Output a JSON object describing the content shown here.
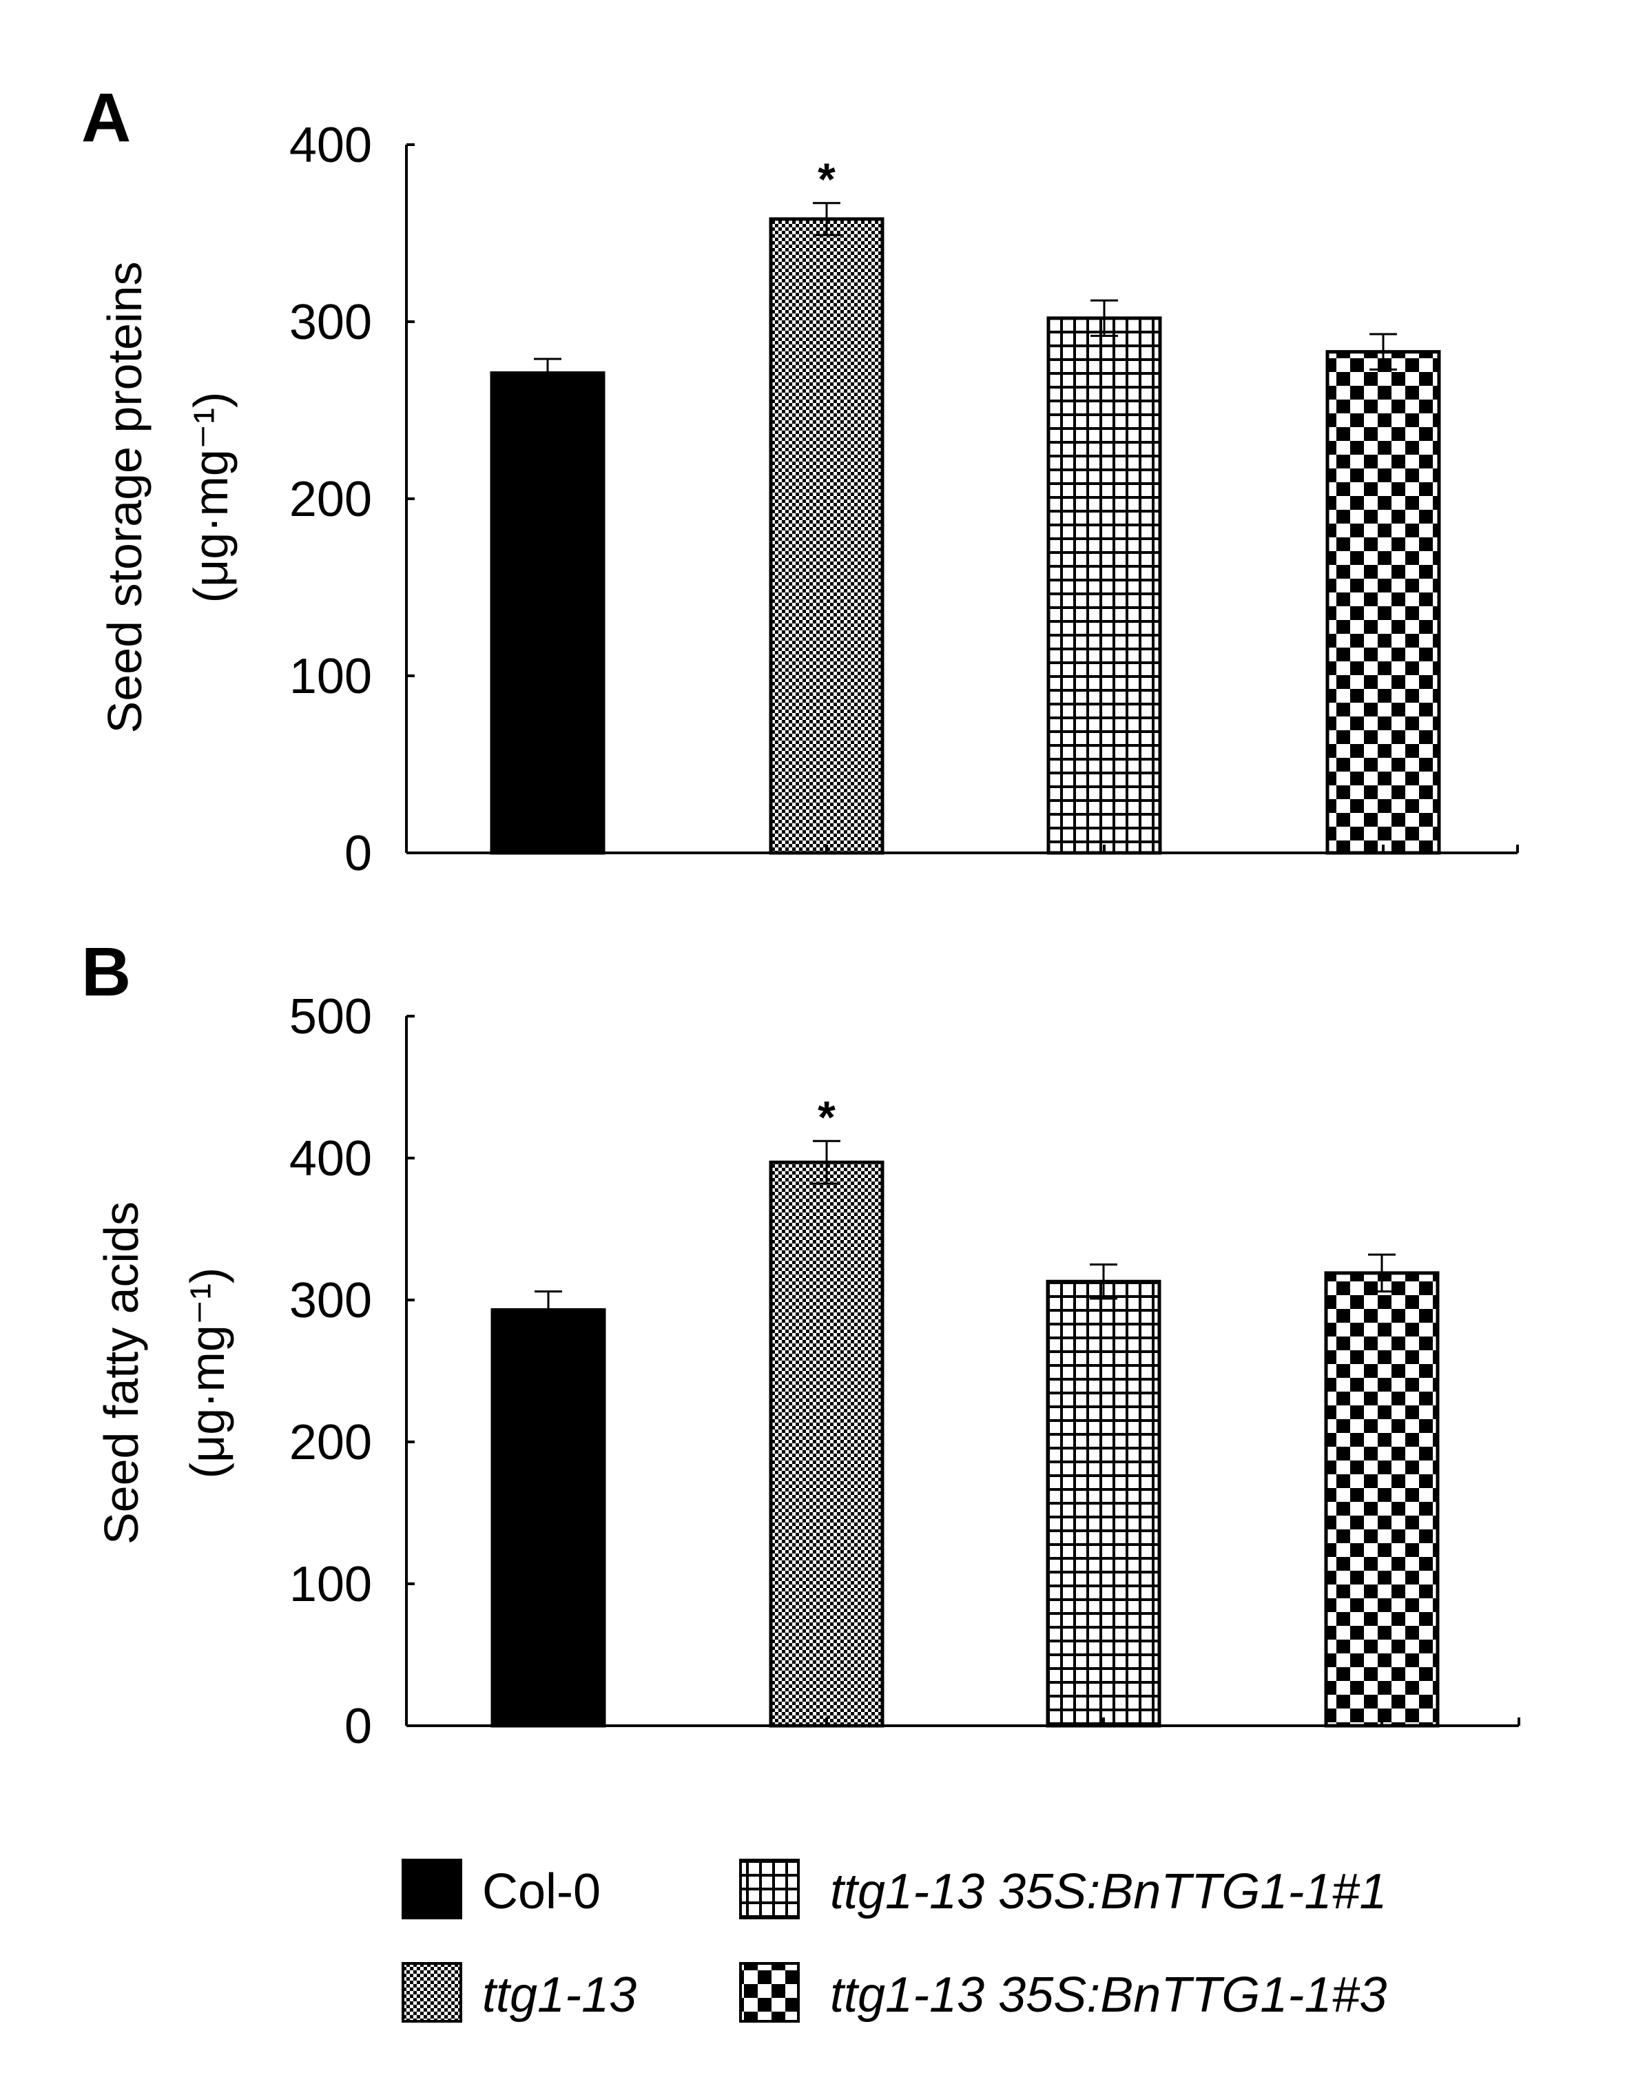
{
  "chart_data": [
    {
      "type": "bar",
      "panel": "A",
      "categories": [
        "Col-0",
        "ttg1-13",
        "ttg1-13 35S:BnTTG1-1#1",
        "ttg1-13 35S:BnTTG1-1#3"
      ],
      "values": [
        271,
        358,
        302,
        283
      ],
      "errors": [
        8,
        9,
        10,
        10
      ],
      "significance": [
        "",
        "*",
        "",
        ""
      ],
      "ylabel": "Seed storage proteins",
      "yunit": "(μg·mg⁻¹)",
      "ylim": [
        0,
        400
      ],
      "yticks": [
        "0",
        "100",
        "200",
        "300",
        "400"
      ],
      "grid": false
    },
    {
      "type": "bar",
      "panel": "B",
      "categories": [
        "Col-0",
        "ttg1-13",
        "ttg1-13 35S:BnTTG1-1#1",
        "ttg1-13 35S:BnTTG1-1#3"
      ],
      "values": [
        293,
        397,
        313,
        319
      ],
      "errors": [
        13,
        15,
        12,
        13
      ],
      "significance": [
        "",
        "*",
        "",
        ""
      ],
      "ylabel": "Seed fatty acids",
      "yunit": "(μg·mg⁻¹)",
      "ylim": [
        0,
        500
      ],
      "yticks": [
        "0",
        "100",
        "200",
        "300",
        "400",
        "500"
      ],
      "grid": false
    }
  ],
  "legend": {
    "position": "bottom",
    "items": [
      {
        "label": "Col-0",
        "pattern": "solid",
        "italic": false
      },
      {
        "label": "ttg1-13",
        "pattern": "fine-checker",
        "italic": true
      },
      {
        "label": "ttg1-13 35S:BnTTG1-1#1",
        "pattern": "grid",
        "italic": true
      },
      {
        "label": "ttg1-13 35S:BnTTG1-1#3",
        "pattern": "checker",
        "italic": true
      }
    ]
  },
  "colors": {
    "ink": "#000000",
    "background": "#ffffff"
  }
}
